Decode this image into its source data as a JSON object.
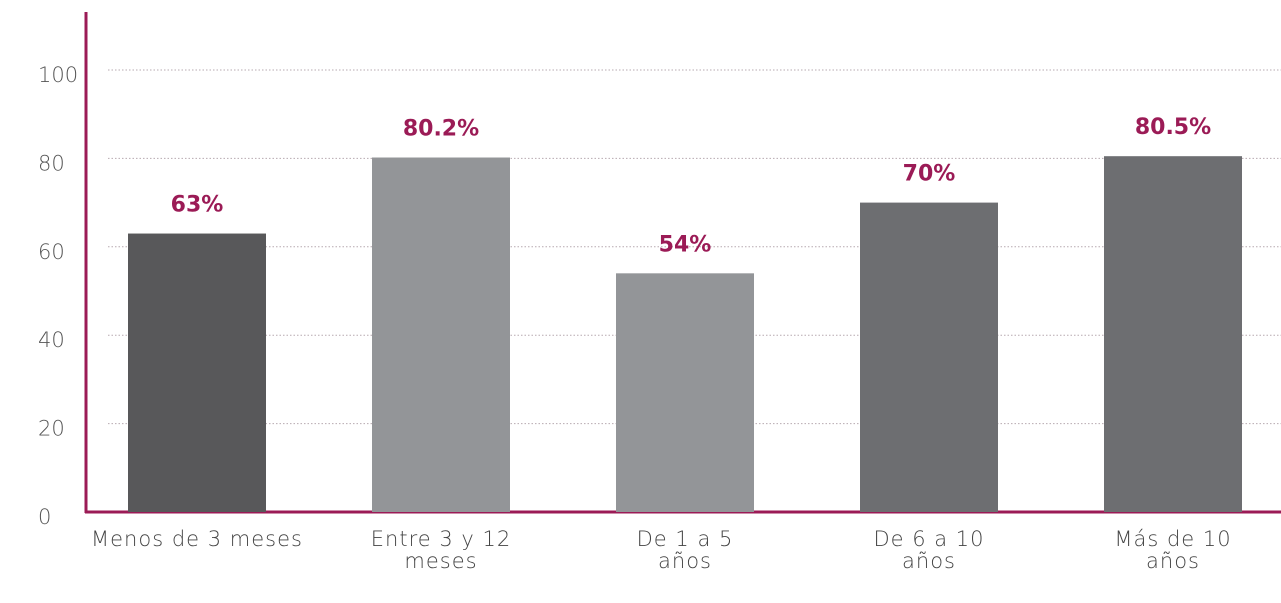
{
  "chart_data": {
    "type": "bar",
    "categories": [
      "Menos de 3 meses",
      "Entre 3 y 12 meses",
      "De 1 a 5 años",
      "De 6 a 10 años",
      "Más de 10 años"
    ],
    "values": [
      63,
      80.2,
      54,
      70,
      80.5
    ],
    "value_labels": [
      "63%",
      "80.2%",
      "54%",
      "70%",
      "80.5%"
    ],
    "colors": [
      "#58585a",
      "#939598",
      "#939598",
      "#6d6e71",
      "#6d6e71"
    ],
    "label_color": "#9b1b56",
    "ylim": [
      0,
      100
    ],
    "yticks": [
      0,
      20,
      40,
      60,
      80,
      100
    ],
    "grid": true
  }
}
